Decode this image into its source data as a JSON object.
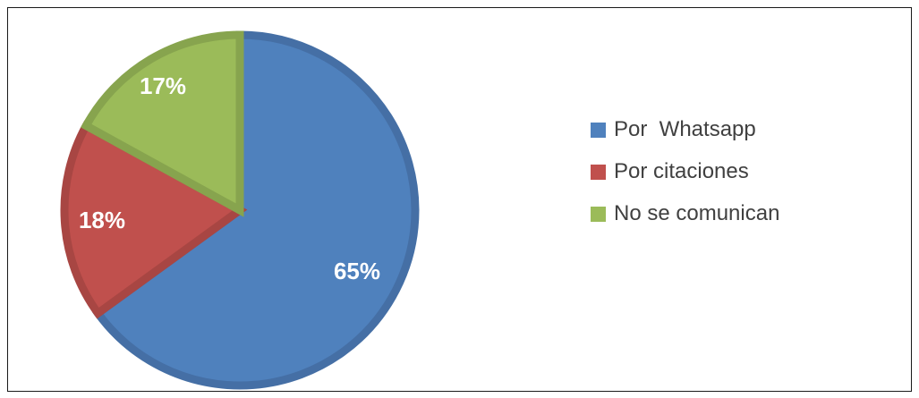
{
  "chart_data": {
    "type": "pie",
    "categories": [
      "Por  Whatsapp",
      "Por citaciones",
      "No se comunican"
    ],
    "values": [
      65,
      18,
      17
    ],
    "data_labels": [
      "65%",
      "18%",
      "17%"
    ],
    "colors": [
      "#4F81BD",
      "#C0504D",
      "#9BBB59"
    ],
    "edge_colors": [
      "#456FA5",
      "#A84643",
      "#87A44E"
    ],
    "start_angle_deg": 0,
    "direction": "clockwise",
    "legend_position": "right"
  }
}
